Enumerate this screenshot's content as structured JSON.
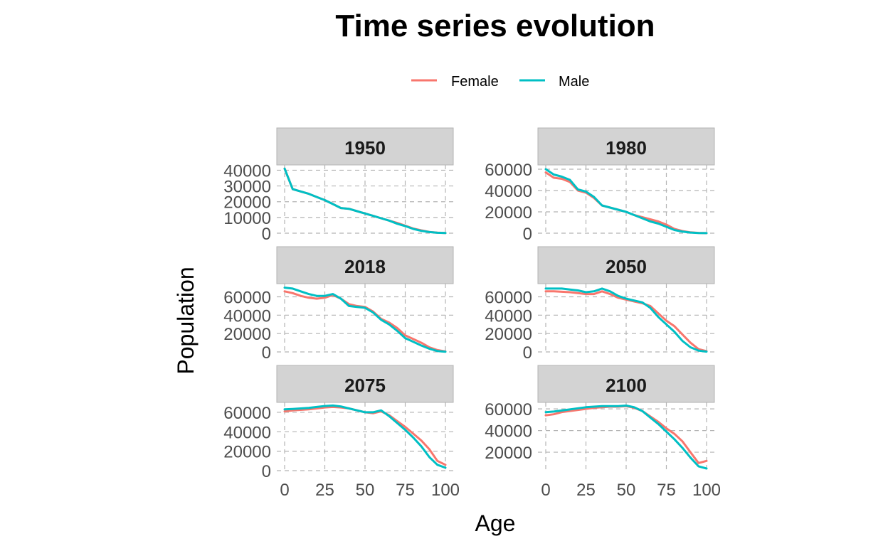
{
  "chart_data": {
    "type": "line",
    "title": "Time series evolution",
    "xlabel": "Age",
    "ylabel": "Population",
    "legend_position": "top",
    "grid": true,
    "colors": {
      "Female": "#F8766D",
      "Male": "#00BFC4"
    },
    "series_names": [
      "Female",
      "Male"
    ],
    "xlim": [
      0,
      100
    ],
    "x_ticks": [
      0,
      25,
      50,
      75,
      100
    ],
    "x": [
      0,
      5,
      10,
      15,
      20,
      25,
      30,
      35,
      40,
      45,
      50,
      55,
      60,
      65,
      70,
      75,
      80,
      85,
      90,
      95,
      100
    ],
    "panels": [
      {
        "label": "1950",
        "ylim": [
          0,
          42000
        ],
        "y_ticks": [
          0,
          10000,
          20000,
          30000,
          40000
        ],
        "series": [
          {
            "name": "Female",
            "values": [
              41000,
              28000,
              26500,
              25000,
              23000,
              21000,
              18500,
              16000,
              15500,
              14000,
              12500,
              11000,
              9500,
              8000,
              6500,
              4800,
              3000,
              1800,
              800,
              300,
              100
            ]
          },
          {
            "name": "Male",
            "values": [
              41000,
              28000,
              26500,
              25000,
              23000,
              21000,
              18500,
              16000,
              15500,
              14000,
              12500,
              11000,
              9500,
              8000,
              6000,
              4500,
              2700,
              1500,
              700,
              250,
              80
            ]
          }
        ]
      },
      {
        "label": "1980",
        "ylim": [
          0,
          62000
        ],
        "y_ticks": [
          0,
          20000,
          40000,
          60000
        ],
        "series": [
          {
            "name": "Female",
            "values": [
              57000,
              52000,
              51000,
              48000,
              40000,
              38000,
              33000,
              26000,
              24000,
              22000,
              20000,
              17000,
              15000,
              13000,
              11000,
              8000,
              4000,
              2000,
              800,
              300,
              100
            ]
          },
          {
            "name": "Male",
            "values": [
              60000,
              55000,
              53000,
              50000,
              41000,
              39000,
              34000,
              26000,
              24000,
              22000,
              20000,
              17000,
              14000,
              11000,
              9000,
              6000,
              3000,
              1500,
              600,
              200,
              50
            ]
          }
        ]
      },
      {
        "label": "2018",
        "ylim": [
          0,
          72000
        ],
        "y_ticks": [
          0,
          20000,
          40000,
          60000
        ],
        "series": [
          {
            "name": "Female",
            "values": [
              66000,
              64000,
              61000,
              59000,
              58000,
              59000,
              62000,
              58000,
              52000,
              50000,
              49000,
              44000,
              36000,
              32000,
              26000,
              18000,
              14000,
              10000,
              5000,
              2000,
              500
            ]
          },
          {
            "name": "Male",
            "values": [
              70000,
              69000,
              66000,
              63000,
              61000,
              61000,
              63000,
              58000,
              50000,
              49000,
              48000,
              43000,
              35000,
              30000,
              23000,
              15000,
              11000,
              7000,
              3500,
              1000,
              200
            ]
          }
        ]
      },
      {
        "label": "2050",
        "ylim": [
          0,
          72000
        ],
        "y_ticks": [
          0,
          20000,
          40000,
          60000
        ],
        "series": [
          {
            "name": "Female",
            "values": [
              66000,
              66000,
              65500,
              65000,
              64000,
              63000,
              63000,
              66000,
              63000,
              59000,
              57000,
              55000,
              53000,
              50000,
              42000,
              34000,
              28000,
              19000,
              10000,
              3000,
              800
            ]
          },
          {
            "name": "Male",
            "values": [
              69000,
              69000,
              69000,
              68000,
              67000,
              65000,
              66000,
              69000,
              66000,
              61000,
              58000,
              56000,
              54000,
              48000,
              38000,
              30000,
              22000,
              12000,
              5000,
              1500,
              300
            ]
          }
        ]
      },
      {
        "label": "2075",
        "ylim": [
          0,
          68000
        ],
        "y_ticks": [
          0,
          20000,
          40000,
          60000
        ],
        "series": [
          {
            "name": "Female",
            "values": [
              61000,
              62000,
              62500,
              63000,
              64000,
              65000,
              65500,
              65000,
              64000,
              62000,
              60000,
              59000,
              61000,
              57000,
              51000,
              45000,
              38000,
              31000,
              22000,
              10000,
              6000
            ]
          },
          {
            "name": "Male",
            "values": [
              63000,
              63500,
              64000,
              64500,
              65500,
              66500,
              67000,
              66000,
              64000,
              62000,
              60000,
              60000,
              62000,
              56000,
              49000,
              42000,
              34000,
              25000,
              14000,
              6000,
              3000
            ]
          }
        ]
      },
      {
        "label": "2100",
        "ylim": [
          3000,
          64000
        ],
        "y_ticks": [
          20000,
          40000,
          60000
        ],
        "series": [
          {
            "name": "Female",
            "values": [
              54000,
              55000,
              57000,
              58000,
              59000,
              60000,
              61000,
              61500,
              62000,
              62000,
              62500,
              61000,
              58000,
              53000,
              48000,
              42000,
              37000,
              30000,
              20000,
              10000,
              12000
            ]
          },
          {
            "name": "Male",
            "values": [
              57000,
              57500,
              58500,
              59500,
              60500,
              61500,
              62000,
              62500,
              62500,
              62500,
              63000,
              61500,
              58000,
              52000,
              46000,
              39000,
              32000,
              24000,
              15000,
              7000,
              5000
            ]
          }
        ]
      }
    ]
  }
}
